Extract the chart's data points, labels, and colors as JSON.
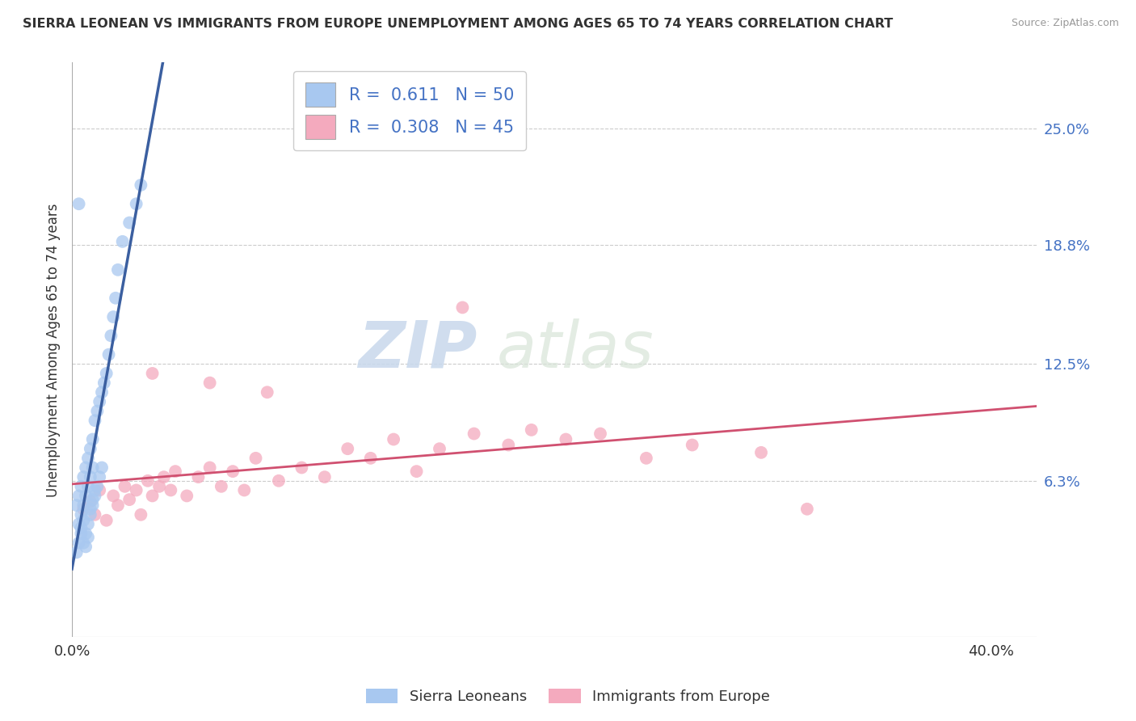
{
  "title": "SIERRA LEONEAN VS IMMIGRANTS FROM EUROPE UNEMPLOYMENT AMONG AGES 65 TO 74 YEARS CORRELATION CHART",
  "source": "Source: ZipAtlas.com",
  "ylabel": "Unemployment Among Ages 65 to 74 years",
  "xlim": [
    0.0,
    0.42
  ],
  "ylim": [
    -0.02,
    0.285
  ],
  "xticks": [
    0.0,
    0.4
  ],
  "xticklabels": [
    "0.0%",
    "40.0%"
  ],
  "ytick_labels_right": [
    "6.3%",
    "12.5%",
    "18.8%",
    "25.0%"
  ],
  "ytick_vals_right": [
    0.063,
    0.125,
    0.188,
    0.25
  ],
  "blue_color": "#A8C8F0",
  "blue_line_color": "#3B5FA0",
  "pink_color": "#F4AABE",
  "pink_line_color": "#D05070",
  "R_blue": 0.611,
  "N_blue": 50,
  "R_pink": 0.308,
  "N_pink": 45,
  "legend_label_blue": "Sierra Leoneans",
  "legend_label_pink": "Immigrants from Europe",
  "watermark_zip": "ZIP",
  "watermark_atlas": "atlas",
  "blue_scatter_x": [
    0.002,
    0.003,
    0.003,
    0.004,
    0.004,
    0.004,
    0.005,
    0.005,
    0.005,
    0.006,
    0.006,
    0.006,
    0.007,
    0.007,
    0.007,
    0.008,
    0.008,
    0.008,
    0.009,
    0.009,
    0.009,
    0.01,
    0.01,
    0.011,
    0.011,
    0.012,
    0.012,
    0.013,
    0.013,
    0.014,
    0.015,
    0.016,
    0.017,
    0.018,
    0.019,
    0.02,
    0.022,
    0.025,
    0.028,
    0.03,
    0.002,
    0.003,
    0.004,
    0.005,
    0.006,
    0.007,
    0.008,
    0.009,
    0.01,
    0.003
  ],
  "blue_scatter_y": [
    0.05,
    0.04,
    0.055,
    0.035,
    0.045,
    0.06,
    0.03,
    0.05,
    0.065,
    0.035,
    0.055,
    0.07,
    0.04,
    0.06,
    0.075,
    0.045,
    0.065,
    0.08,
    0.05,
    0.07,
    0.085,
    0.055,
    0.095,
    0.06,
    0.1,
    0.065,
    0.105,
    0.07,
    0.11,
    0.115,
    0.12,
    0.13,
    0.14,
    0.15,
    0.16,
    0.175,
    0.19,
    0.2,
    0.21,
    0.22,
    0.025,
    0.03,
    0.038,
    0.042,
    0.028,
    0.033,
    0.048,
    0.053,
    0.058,
    0.21
  ],
  "pink_scatter_x": [
    0.005,
    0.008,
    0.01,
    0.012,
    0.015,
    0.018,
    0.02,
    0.023,
    0.025,
    0.028,
    0.03,
    0.033,
    0.035,
    0.038,
    0.04,
    0.043,
    0.045,
    0.05,
    0.055,
    0.06,
    0.065,
    0.07,
    0.075,
    0.08,
    0.09,
    0.1,
    0.11,
    0.12,
    0.13,
    0.14,
    0.15,
    0.16,
    0.175,
    0.19,
    0.2,
    0.215,
    0.23,
    0.25,
    0.27,
    0.3,
    0.035,
    0.06,
    0.085,
    0.17,
    0.32
  ],
  "pink_scatter_y": [
    0.048,
    0.052,
    0.045,
    0.058,
    0.042,
    0.055,
    0.05,
    0.06,
    0.053,
    0.058,
    0.045,
    0.063,
    0.055,
    0.06,
    0.065,
    0.058,
    0.068,
    0.055,
    0.065,
    0.07,
    0.06,
    0.068,
    0.058,
    0.075,
    0.063,
    0.07,
    0.065,
    0.08,
    0.075,
    0.085,
    0.068,
    0.08,
    0.088,
    0.082,
    0.09,
    0.085,
    0.088,
    0.075,
    0.082,
    0.078,
    0.12,
    0.115,
    0.11,
    0.155,
    0.048
  ]
}
